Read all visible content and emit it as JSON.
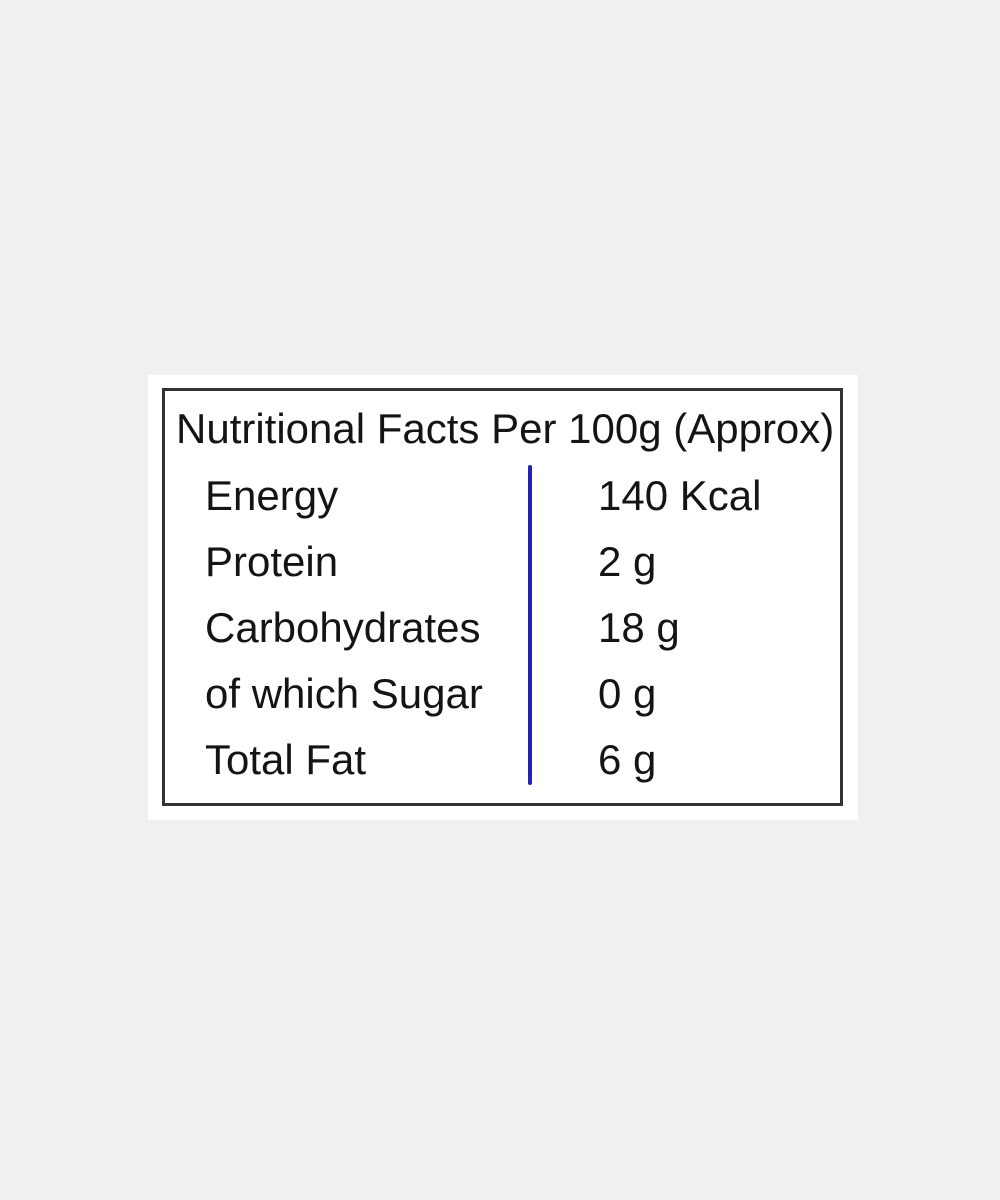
{
  "page": {
    "background_color": "#f0f0f1"
  },
  "table": {
    "title": "Nutritional Facts Per 100g (Approx)",
    "card_background": "#ffffff",
    "border_color": "#333333",
    "divider_color": "#2222b8",
    "text_color": "#141414",
    "rows": [
      {
        "label": "Energy",
        "value": "140 Kcal"
      },
      {
        "label": "Protein",
        "value": "2 g"
      },
      {
        "label": "Carbohydrates",
        "value": "18 g"
      },
      {
        "label": "of which Sugar",
        "value": "0 g"
      },
      {
        "label": "Total Fat",
        "value": "6 g"
      }
    ]
  }
}
